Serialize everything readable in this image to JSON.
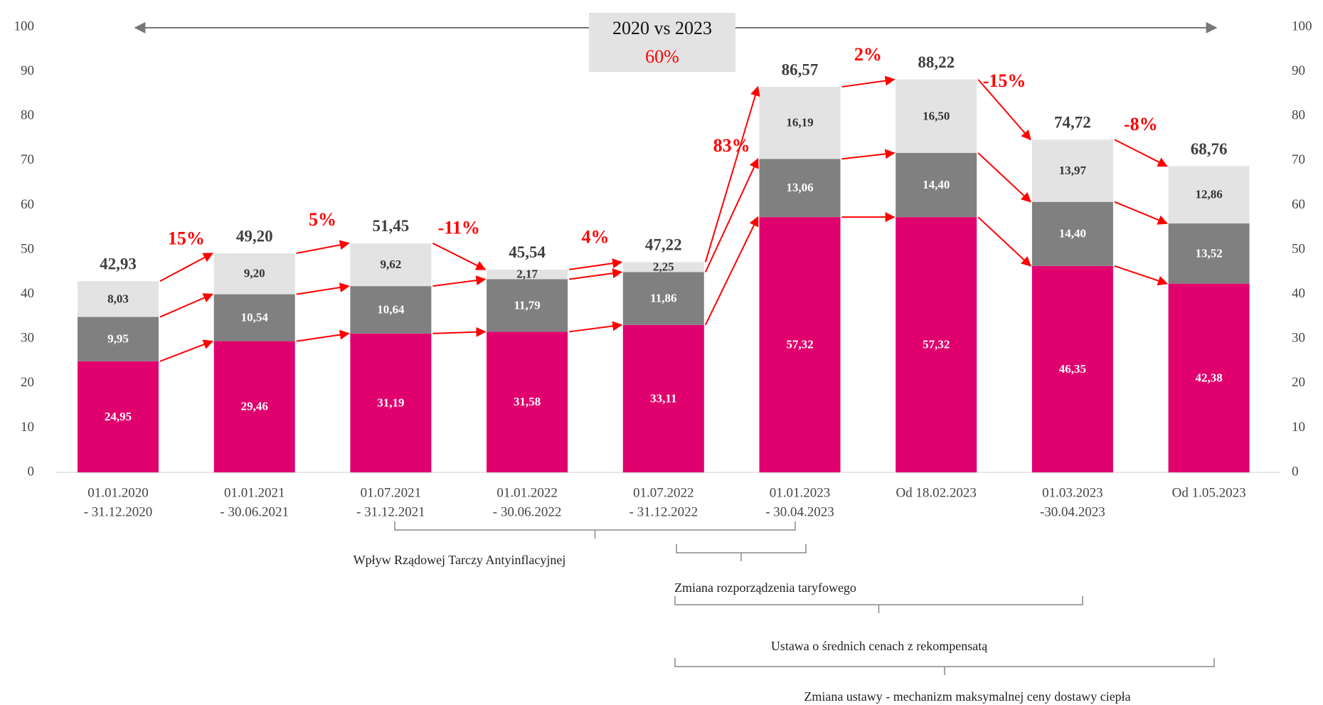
{
  "chart_data": {
    "type": "stacked-bar",
    "categories": [
      [
        "01.01.2020",
        "- 31.12.2020"
      ],
      [
        "01.01.2021",
        "- 30.06.2021"
      ],
      [
        "01.07.2021",
        "- 31.12.2021"
      ],
      [
        "01.01.2022",
        "- 30.06.2022"
      ],
      [
        "01.07.2022",
        "- 31.12.2022"
      ],
      [
        "01.01.2023",
        "- 30.04.2023"
      ],
      [
        "Od 18.02.2023"
      ],
      [
        "01.03.2023",
        "-30.04.2023"
      ],
      [
        "Od 1.05.2023"
      ]
    ],
    "series": [
      {
        "color": "#e0006e",
        "values": [
          24.95,
          29.46,
          31.19,
          31.58,
          33.11,
          57.32,
          57.32,
          46.35,
          42.38
        ],
        "value_labels": [
          "24,95",
          "29,46",
          "31,19",
          "31,58",
          "33,11",
          "57,32",
          "57,32",
          "46,35",
          "42,38"
        ]
      },
      {
        "color": "#808080",
        "values": [
          9.95,
          10.54,
          10.64,
          11.79,
          11.86,
          13.06,
          14.4,
          14.4,
          13.52
        ],
        "value_labels": [
          "9,95",
          "10,54",
          "10,64",
          "11,79",
          "11,86",
          "13,06",
          "14,40",
          "14,40",
          "13,52"
        ]
      },
      {
        "color": "#e3e3e3",
        "values": [
          8.03,
          9.2,
          9.62,
          2.17,
          2.25,
          16.19,
          16.5,
          13.97,
          12.86
        ],
        "value_labels": [
          "8,03",
          "9,20",
          "9,62",
          "2,17",
          "2,25",
          "16,19",
          "16,50",
          "13,97",
          "12,86"
        ]
      }
    ],
    "totals": [
      42.93,
      49.2,
      51.45,
      45.54,
      47.22,
      86.57,
      88.22,
      74.72,
      68.76
    ],
    "total_labels": [
      "42,93",
      "49,20",
      "51,45",
      "45,54",
      "47,22",
      "86,57",
      "88,22",
      "74,72",
      "68,76"
    ],
    "changes": [
      {
        "value": 15,
        "label": "15%"
      },
      {
        "value": 5,
        "label": "5%"
      },
      {
        "value": -11,
        "label": "-11%"
      },
      {
        "value": 4,
        "label": "4%"
      },
      {
        "value": 83,
        "label": "83%"
      },
      {
        "value": 2,
        "label": "2%"
      },
      {
        "value": -15,
        "label": "-15%"
      },
      {
        "value": -8,
        "label": "-8%"
      }
    ],
    "comparison": {
      "label": "2020 vs 2023",
      "change": {
        "value": 60,
        "label": "60%"
      }
    },
    "brackets": [
      {
        "label": "Wpływ  Rządowej Tarczy Antyinflacyjnej"
      },
      {
        "label": "Zmiana rozporządzenia  taryfowego"
      },
      {
        "label": "Ustawa o średnich cenach z rekompensatą"
      },
      {
        "label": "Zmiana ustawy -  mechanizm maksymalnej ceny dostawy ciepła"
      }
    ],
    "ylim": [
      0,
      100
    ],
    "yticks": [
      0,
      10,
      20,
      30,
      40,
      50,
      60,
      70,
      80,
      90,
      100
    ],
    "y2lim": [
      0,
      100
    ],
    "y2ticks": [
      0,
      10,
      20,
      30,
      40,
      50,
      60,
      70,
      80,
      90,
      100
    ]
  }
}
